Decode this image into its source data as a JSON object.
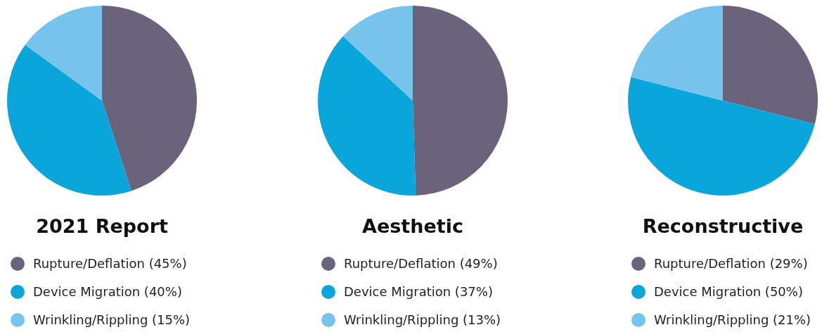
{
  "chart_data": [
    {
      "type": "pie",
      "title": "2021 Report",
      "categories": [
        "Rupture/Deflation (45%)",
        "Device Migration (40%)",
        "Wrinkling/Rippling (15%)"
      ],
      "values": [
        45,
        40,
        15
      ],
      "colors": [
        "#6b627c",
        "#0aa6db",
        "#76c3ec"
      ],
      "legend": "bottom"
    },
    {
      "type": "pie",
      "title": "Aesthetic",
      "categories": [
        "Rupture/Deflation (49%)",
        "Device Migration (37%)",
        "Wrinkling/Rippling (13%)"
      ],
      "values": [
        49,
        37,
        13
      ],
      "colors": [
        "#6b627c",
        "#0aa6db",
        "#76c3ec"
      ],
      "legend": "bottom"
    },
    {
      "type": "pie",
      "title": "Reconstructive",
      "categories": [
        "Rupture/Deflation (29%)",
        "Device Migration (50%)",
        "Wrinkling/Rippling (21%)"
      ],
      "values": [
        29,
        50,
        21
      ],
      "colors": [
        "#6b627c",
        "#0aa6db",
        "#76c3ec"
      ],
      "legend": "bottom"
    }
  ]
}
